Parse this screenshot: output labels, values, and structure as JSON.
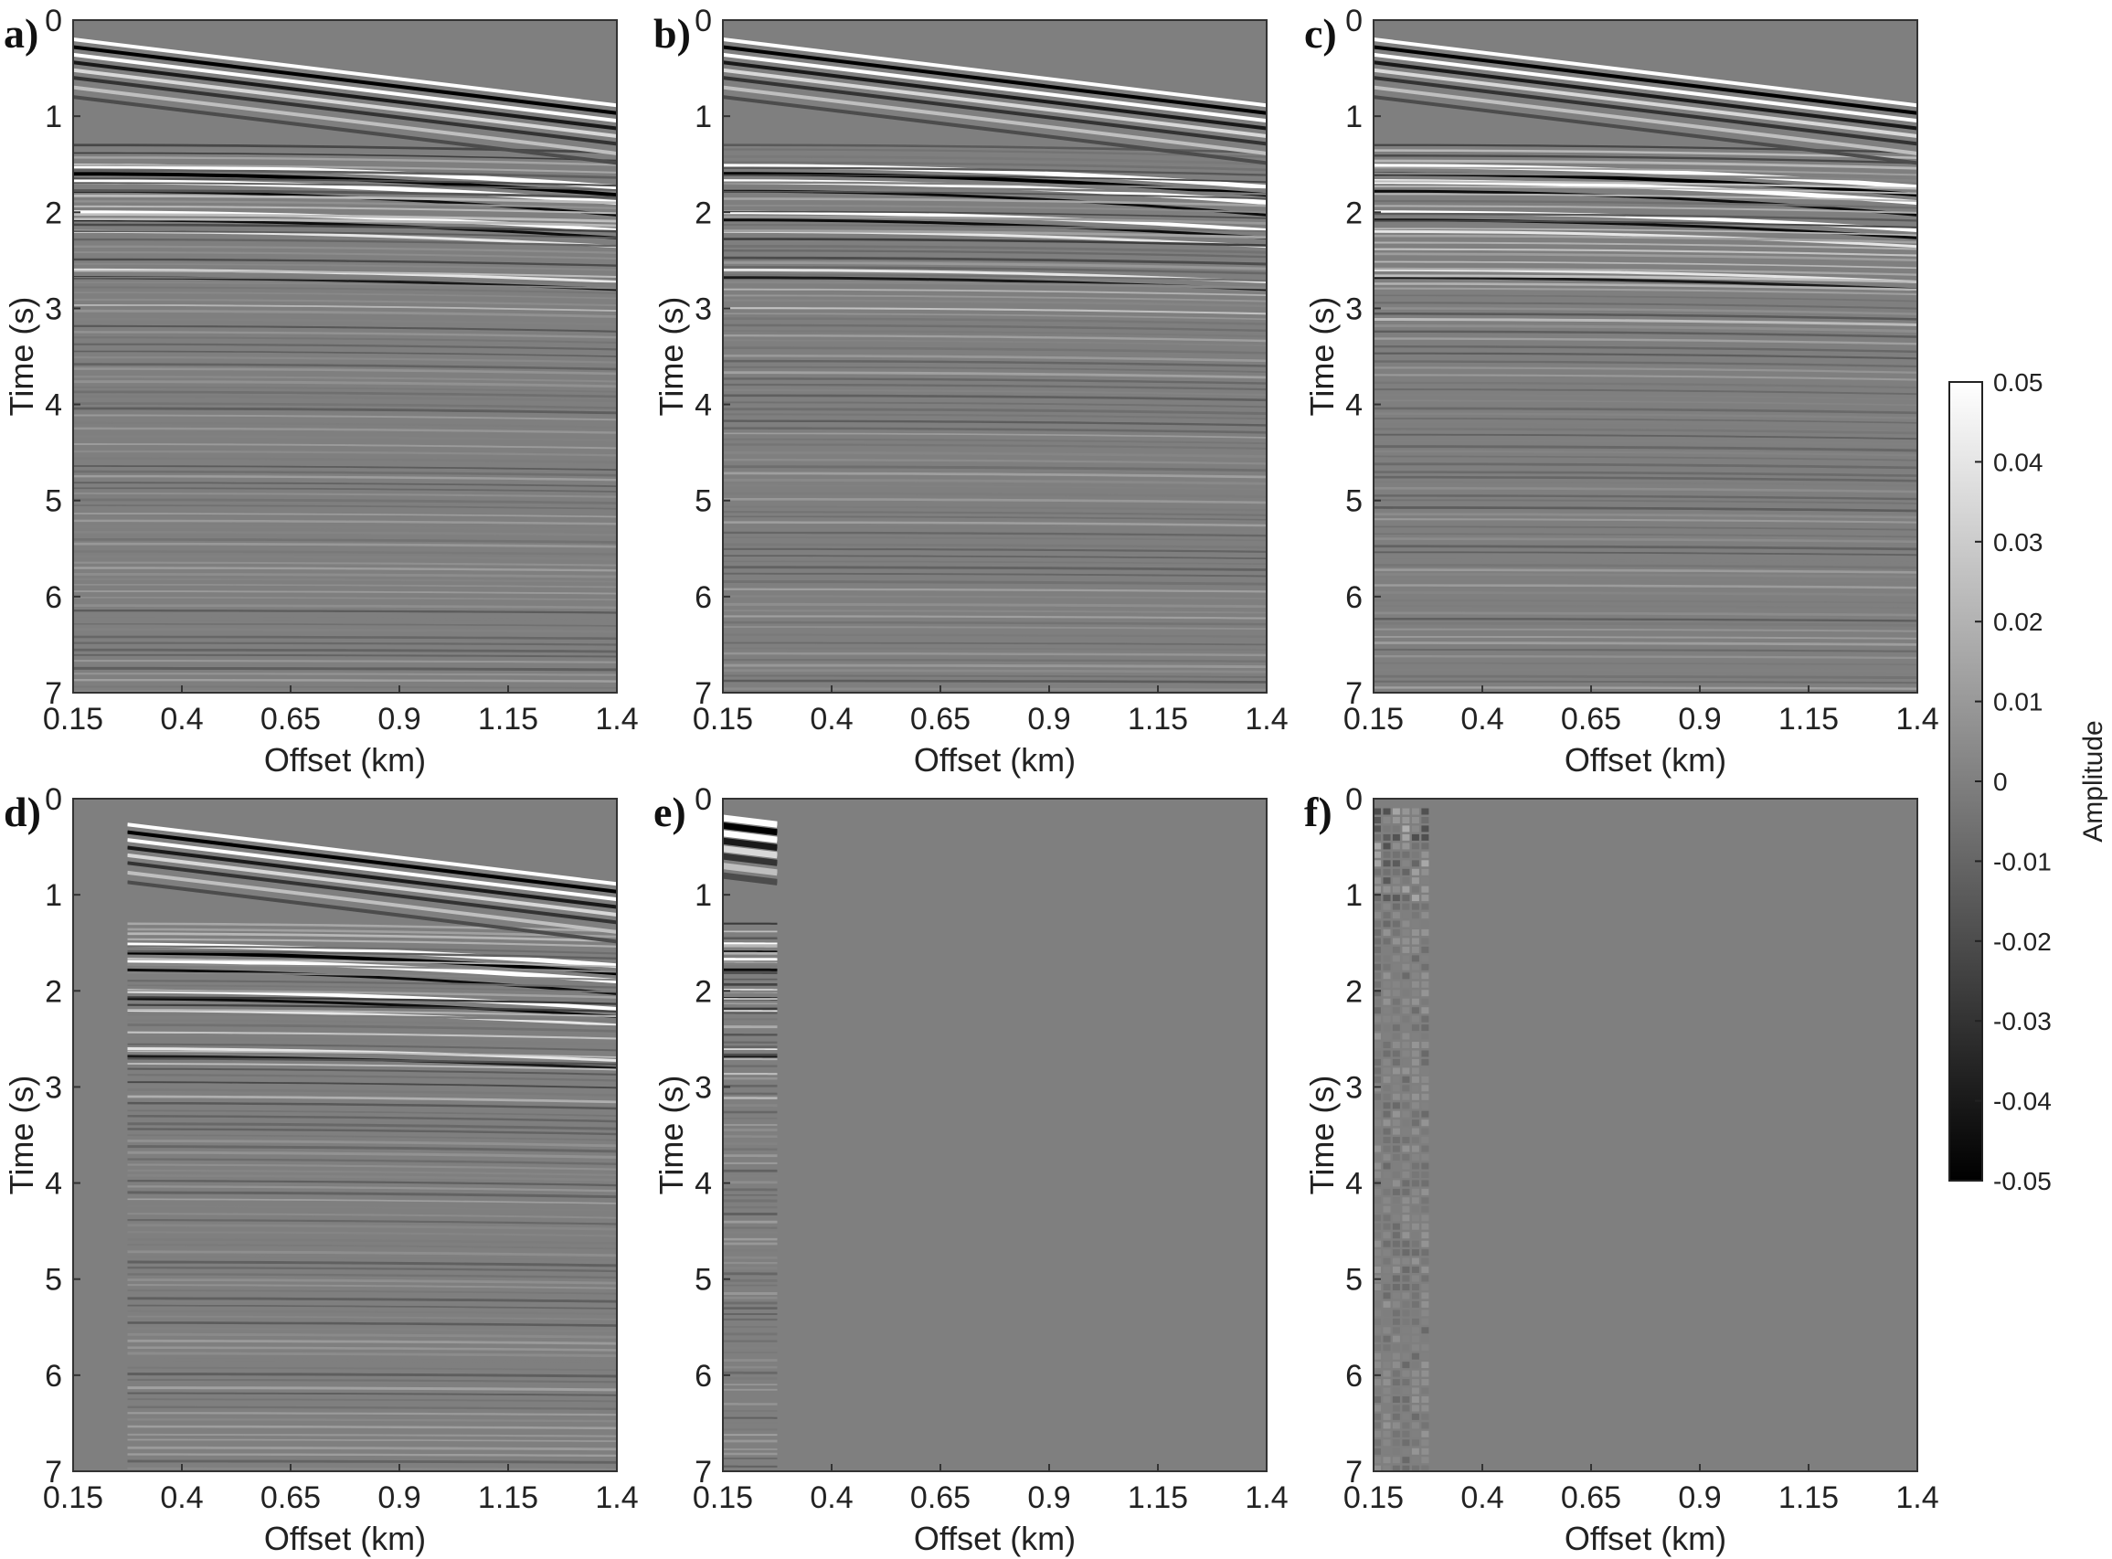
{
  "figure": {
    "colorbar": {
      "label": "Amplitude",
      "ticks": [
        "0.05",
        "0.04",
        "0.03",
        "0.02",
        "0.01",
        "0",
        "-0.01",
        "-0.02",
        "-0.03",
        "-0.04",
        "-0.05"
      ],
      "range": [
        -0.05,
        0.05
      ],
      "colormap": "gray",
      "color_low": "#000000",
      "color_high": "#ffffff"
    }
  },
  "chart_data": [
    {
      "type": "heatmap",
      "panel_label": "a)",
      "xlabel": "Offset (km)",
      "ylabel": "Time (s)",
      "xlim": [
        0.15,
        1.4
      ],
      "ylim": [
        7,
        0
      ],
      "x_ticks": [
        "0.15",
        "0.4",
        "0.65",
        "0.9",
        "1.15",
        "1.4"
      ],
      "y_ticks": [
        "0",
        "1",
        "2",
        "3",
        "4",
        "5",
        "6",
        "7"
      ],
      "data_offset_range": [
        0.15,
        1.4
      ],
      "content": "full"
    },
    {
      "type": "heatmap",
      "panel_label": "b)",
      "xlabel": "Offset (km)",
      "ylabel": "Time (s)",
      "xlim": [
        0.15,
        1.4
      ],
      "ylim": [
        7,
        0
      ],
      "x_ticks": [
        "0.15",
        "0.4",
        "0.65",
        "0.9",
        "1.15",
        "1.4"
      ],
      "y_ticks": [
        "0",
        "1",
        "2",
        "3",
        "4",
        "5",
        "6",
        "7"
      ],
      "data_offset_range": [
        0.15,
        1.4
      ],
      "content": "full"
    },
    {
      "type": "heatmap",
      "panel_label": "c)",
      "xlabel": "Offset (km)",
      "ylabel": "Time (s)",
      "xlim": [
        0.15,
        1.4
      ],
      "ylim": [
        7,
        0
      ],
      "x_ticks": [
        "0.15",
        "0.4",
        "0.65",
        "0.9",
        "1.15",
        "1.4"
      ],
      "y_ticks": [
        "0",
        "1",
        "2",
        "3",
        "4",
        "5",
        "6",
        "7"
      ],
      "data_offset_range": [
        0.15,
        1.4
      ],
      "content": "full"
    },
    {
      "type": "heatmap",
      "panel_label": "d)",
      "xlabel": "Offset (km)",
      "ylabel": "Time (s)",
      "xlim": [
        0.15,
        1.4
      ],
      "ylim": [
        7,
        0
      ],
      "x_ticks": [
        "0.15",
        "0.4",
        "0.65",
        "0.9",
        "1.15",
        "1.4"
      ],
      "y_ticks": [
        "0",
        "1",
        "2",
        "3",
        "4",
        "5",
        "6",
        "7"
      ],
      "data_offset_range": [
        0.275,
        1.4
      ],
      "content": "full"
    },
    {
      "type": "heatmap",
      "panel_label": "e)",
      "xlabel": "Offset (km)",
      "ylabel": "Time (s)",
      "xlim": [
        0.15,
        1.4
      ],
      "ylim": [
        7,
        0
      ],
      "x_ticks": [
        "0.15",
        "0.4",
        "0.65",
        "0.9",
        "1.15",
        "1.4"
      ],
      "y_ticks": [
        "0",
        "1",
        "2",
        "3",
        "4",
        "5",
        "6",
        "7"
      ],
      "data_offset_range": [
        0.15,
        0.275
      ],
      "content": "near"
    },
    {
      "type": "heatmap",
      "panel_label": "f)",
      "xlabel": "Offset (km)",
      "ylabel": "Time (s)",
      "xlim": [
        0.15,
        1.4
      ],
      "ylim": [
        7,
        0
      ],
      "x_ticks": [
        "0.15",
        "0.4",
        "0.65",
        "0.9",
        "1.15",
        "1.4"
      ],
      "y_ticks": [
        "0",
        "1",
        "2",
        "3",
        "4",
        "5",
        "6",
        "7"
      ],
      "data_offset_range": [
        0.15,
        0.275
      ],
      "content": "residual"
    }
  ]
}
